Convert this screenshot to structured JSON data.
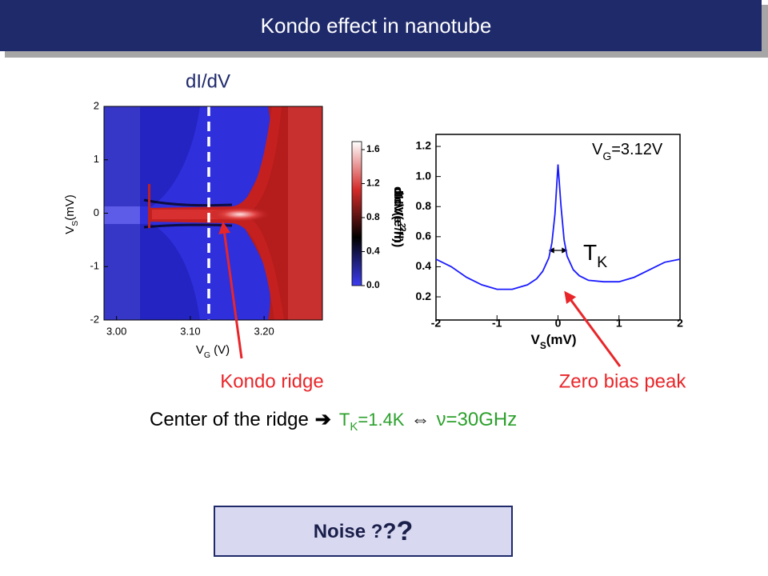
{
  "header": {
    "title": "Kondo effect in nanotube"
  },
  "chart_data": [
    {
      "type": "heatmap",
      "title": "dI/dV",
      "x_label": {
        "main": "V",
        "sub": "G",
        "rest": " (V)"
      },
      "y_label": {
        "main": "V",
        "sub": "S",
        "rest": "(mV)"
      },
      "xlim": [
        2.983,
        3.279
      ],
      "xticks": [
        {
          "value": 3,
          "label": "3.00"
        },
        {
          "value": 3.1,
          "label": "3.10"
        },
        {
          "value": 3.2,
          "label": "3.20"
        }
      ],
      "ylim": [
        -2,
        2
      ],
      "yticks": [
        -2,
        -1,
        0,
        1,
        2
      ],
      "colorbar": {
        "label": {
          "main": "dIdV(e",
          "sup": "2",
          "rest": "/h)"
        },
        "lim": [
          0,
          1.694
        ],
        "ticks": [
          {
            "value": 0,
            "label": "0.0"
          },
          0.4,
          0.8,
          1.2,
          1.6
        ],
        "colors": [
          "#3c3cf2",
          "#000000",
          "#d42a2a",
          "#ffffff"
        ]
      }
    },
    {
      "type": "line",
      "annotation": {
        "main": "V",
        "sub": "G",
        "rest": "=3.12V"
      },
      "width_label": {
        "main": "T",
        "sub": "K"
      },
      "x_label": {
        "main": "V",
        "sub": "S",
        "rest": "(mV)"
      },
      "y_label": {
        "main": "dIdV(e",
        "sup": "2",
        "rest": "/h)"
      },
      "x": [
        -2,
        -1.75,
        -1.5,
        -1.25,
        -1,
        -0.75,
        -0.5,
        -0.35,
        -0.25,
        -0.15,
        -0.1,
        -0.05,
        0,
        0.05,
        0.1,
        0.15,
        0.25,
        0.35,
        0.5,
        0.75,
        1,
        1.25,
        1.5,
        1.75,
        2
      ],
      "values": [
        0.45,
        0.4,
        0.33,
        0.28,
        0.25,
        0.25,
        0.28,
        0.32,
        0.37,
        0.46,
        0.56,
        0.75,
        1.08,
        0.8,
        0.58,
        0.47,
        0.38,
        0.34,
        0.31,
        0.3,
        0.3,
        0.33,
        0.38,
        0.43,
        0.45
      ],
      "color": "#1a1aff",
      "xlim": [
        -2,
        2
      ],
      "xticks": [
        -2,
        -1,
        0,
        1,
        2
      ],
      "ylim": [
        0.046,
        1.28
      ],
      "yticks": [
        0.2,
        0.4,
        0.6,
        0.8,
        {
          "value": 1,
          "label": "1.0"
        },
        1.2
      ]
    }
  ],
  "annotations": {
    "kondo_ridge": "Kondo ridge",
    "zero_bias_peak": "Zero bias peak"
  },
  "statement": {
    "lead": "Center of the ridge",
    "arrow": "➔",
    "temperature": {
      "main": "T",
      "sub": "K",
      "rest": "=1.4K"
    },
    "equiv": "⇔",
    "frequency": "ν=30GHz"
  },
  "box": {
    "parts": [
      "Noise ?",
      "?",
      "?"
    ]
  }
}
